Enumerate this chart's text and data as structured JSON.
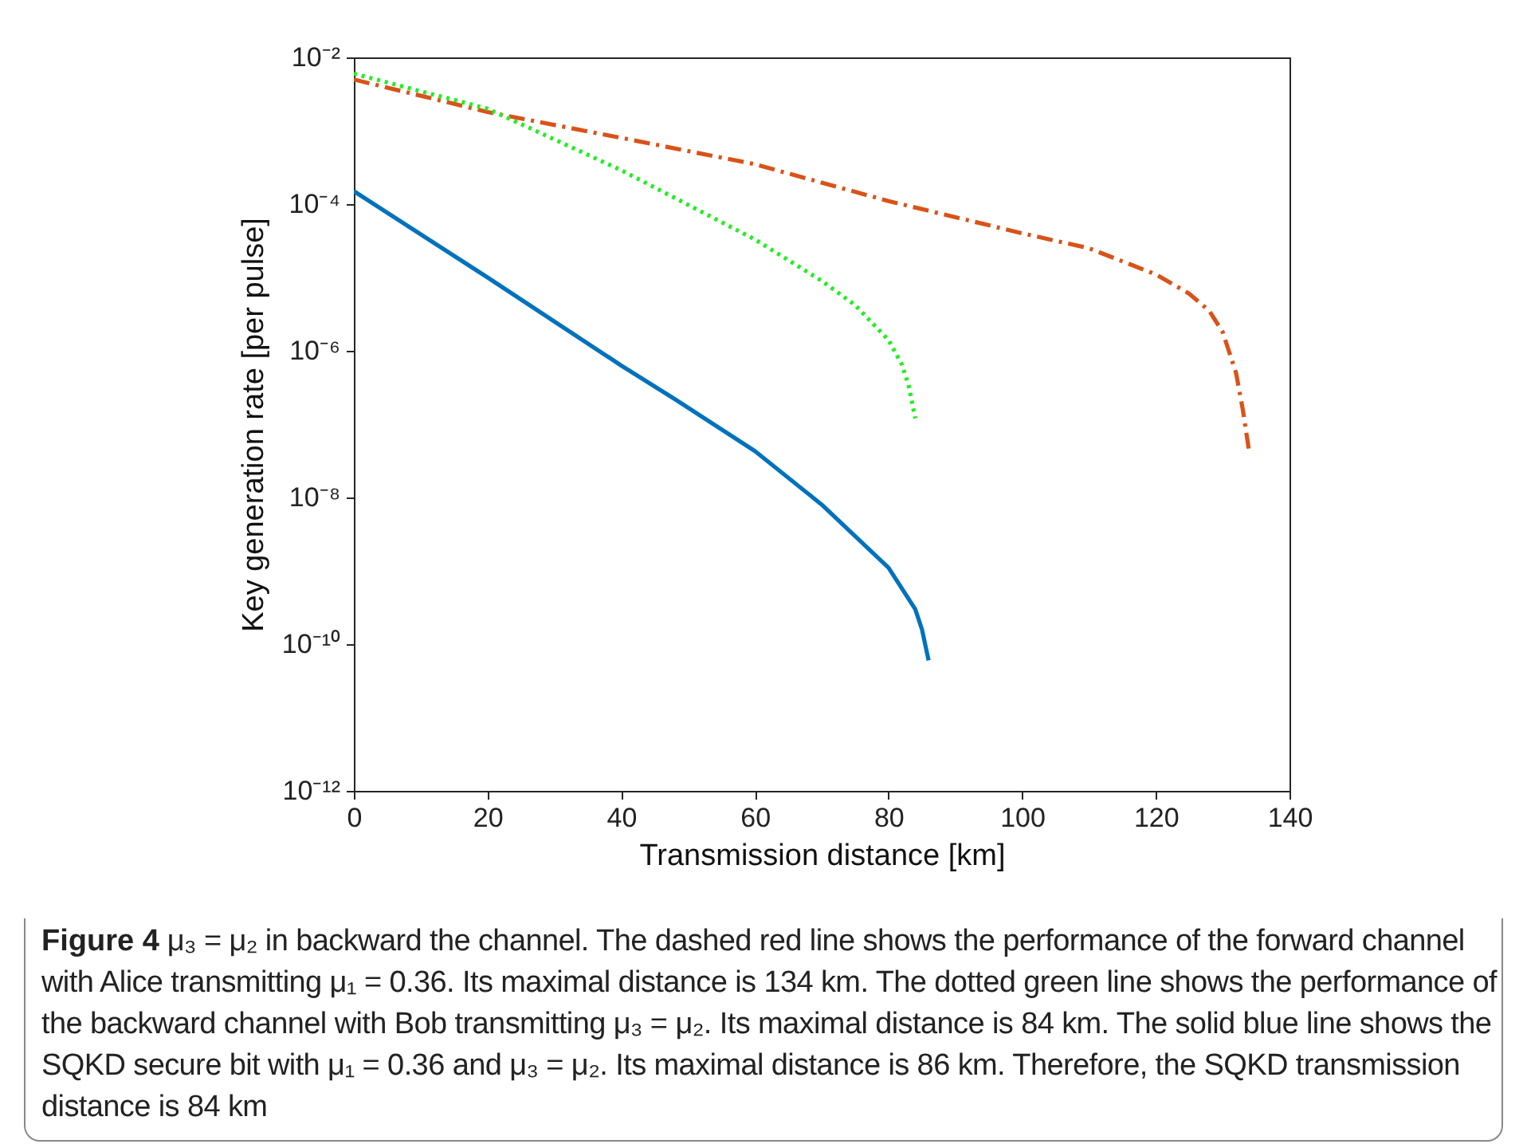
{
  "chart_data": {
    "type": "line",
    "xlabel": "Transmission distance [km]",
    "ylabel": "Key generation rate [per pulse]",
    "annotations": [
      "Figure 4",
      "μ₃ = μ₂ in backward the channel. The dashed red line shows the performance of the forward channel with Alice transmitting μ₁ = 0.36. Its maximal distance is 134 km. The dotted green line shows the performance of the backward channel with Bob transmitting μ₃ = μ₂. Its maximal distance is 84 km. The solid blue line shows the SQKD secure bit with μ₁ = 0.36 and μ₃ = μ₂. Its maximal distance is 86 km. Therefore, the SQKD transmission distance is 84 km"
    ],
    "series": [
      {
        "color": "#d95319",
        "line_style": "dashed",
        "x": [
          0,
          20,
          40,
          60,
          80,
          100,
          110,
          120,
          125,
          128,
          130,
          132,
          133,
          134
        ],
        "values": [
          0.005,
          0.0018,
          0.0008,
          0.00035,
          0.00011,
          4e-05,
          2.5e-05,
          1.1e-05,
          6e-06,
          3.5e-06,
          1.8e-06,
          5e-07,
          1.6e-07,
          4e-08
        ]
      },
      {
        "color": "#22ee22",
        "line_style": "dotted",
        "x": [
          0,
          20,
          40,
          60,
          70,
          75,
          80,
          82,
          83,
          84
        ],
        "values": [
          0.006,
          0.002,
          0.00029,
          3.3e-05,
          9e-06,
          4.2e-06,
          1.4e-06,
          6.5e-07,
          3.4e-07,
          1.2e-07
        ]
      },
      {
        "color": "#0072bd",
        "line_style": "solid",
        "x": [
          0,
          20,
          40,
          48,
          60,
          70,
          80,
          84,
          85,
          86
        ],
        "values": [
          0.00015,
          1e-05,
          6.3e-07,
          2.2e-07,
          4.3e-08,
          8e-09,
          1.1e-09,
          3e-10,
          1.6e-10,
          6e-11
        ]
      }
    ],
    "xlim": [
      0,
      140
    ],
    "xticks": [
      0,
      20,
      40,
      60,
      80,
      100,
      120,
      140
    ],
    "ylim": [
      1e-12,
      0.01
    ],
    "log": "y",
    "yticks": [
      {
        "value": 1e-12,
        "label": "10⁻¹²"
      },
      {
        "value": 1e-10,
        "label": "10⁻¹⁰"
      },
      {
        "value": 1e-08,
        "label": "10⁻⁸"
      },
      {
        "value": 1e-06,
        "label": "10⁻⁶"
      },
      {
        "value": 0.0001,
        "label": "10⁻⁴"
      },
      {
        "value": 0.01,
        "label": "10⁻²"
      }
    ],
    "grid": false,
    "legend": false
  }
}
